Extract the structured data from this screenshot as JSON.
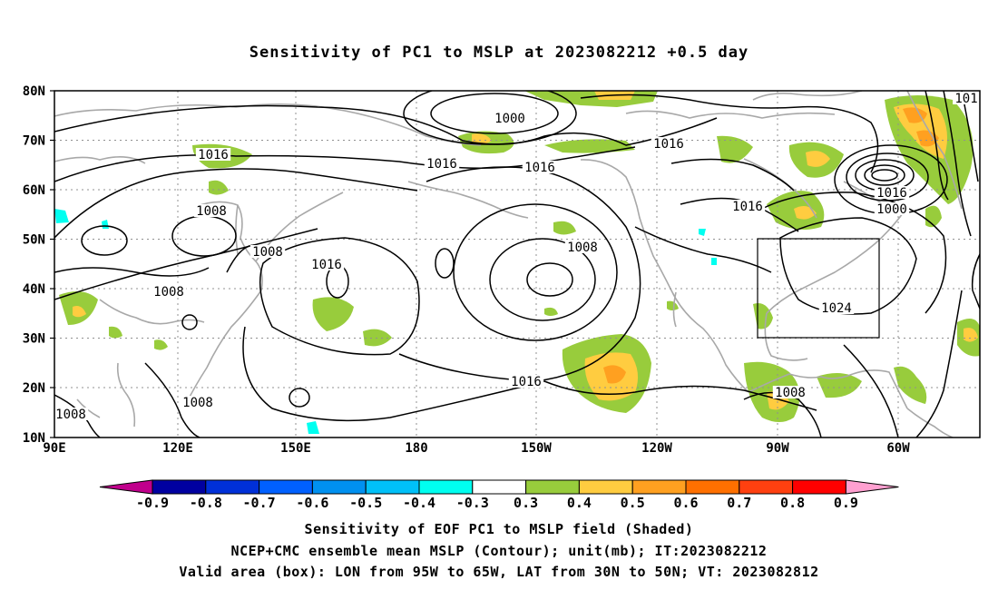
{
  "title": "Sensitivity of PC1 to MSLP at 2023082212 +0.5 day",
  "lat_labels": [
    "80N",
    "70N",
    "60N",
    "50N",
    "40N",
    "30N",
    "20N",
    "10N"
  ],
  "lon_labels": [
    "90E",
    "120E",
    "150E",
    "180",
    "150W",
    "120W",
    "90W",
    "60W"
  ],
  "contour_labels": [
    "1000",
    "1016",
    "1016",
    "1016",
    "1016",
    "1016",
    "1016",
    "1016",
    "1008",
    "1008",
    "1008",
    "1008",
    "1008",
    "1008",
    "1024",
    "1016",
    "1000",
    "1008",
    "101"
  ],
  "colorbar": {
    "colors": [
      "#c0008c",
      "#0000a0",
      "#0030d8",
      "#0060ff",
      "#0090f0",
      "#00c0f8",
      "#00fff0",
      "#ffffff",
      "#98cc3c",
      "#ffcc40",
      "#ffa020",
      "#ff7000",
      "#ff4010",
      "#ff0000",
      "#ffa0d0"
    ],
    "labels": [
      "-0.9",
      "-0.8",
      "-0.7",
      "-0.6",
      "-0.5",
      "-0.4",
      "-0.3",
      "0.3",
      "0.4",
      "0.5",
      "0.6",
      "0.7",
      "0.8",
      "0.9"
    ]
  },
  "captions": [
    "Sensitivity of EOF PC1 to MSLP field (Shaded)",
    "NCEP+CMC ensemble mean MSLP (Contour); unit(mb); IT:2023082212",
    "Valid area (box): LON from 95W to 65W, LAT from 30N to 50N; VT: 2023082812"
  ]
}
